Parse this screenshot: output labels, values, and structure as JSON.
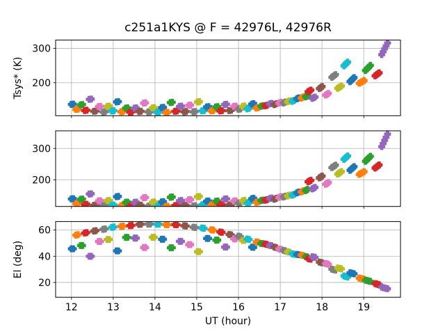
{
  "chart_data": {
    "type": "scatter",
    "title": "c251a1KYS @ F = 42976L, 42976R",
    "xlabel": "UT (hour)",
    "marker": "filled-plus",
    "grid": true,
    "xlim": [
      11.62,
      19.88
    ],
    "x_ticks": [
      12,
      13,
      14,
      15,
      16,
      17,
      18,
      19
    ],
    "color_cycle": [
      "#1f77b4",
      "#ff7f0e",
      "#2ca02c",
      "#d62728",
      "#9467bd",
      "#8c564b",
      "#e377c2",
      "#7f7f7f",
      "#bcbd22",
      "#17becf"
    ],
    "grid_color": "#b0b0b0",
    "frame_color": "#000000",
    "panels": [
      {
        "ylabel": "Tsys* (K)",
        "ylim": [
          104,
          324
        ],
        "yticks": [
          200,
          300
        ],
        "value_key": "tsys_left"
      },
      {
        "ylabel": "",
        "ylim": [
          115,
          356
        ],
        "yticks": [
          200,
          300
        ],
        "value_key": "tsys_right"
      },
      {
        "ylabel": "El (deg)",
        "ylim": [
          8.7,
          66.5
        ],
        "yticks": [
          20,
          40,
          60
        ],
        "value_key": "el"
      }
    ],
    "scan_fields": [
      "ut_hour",
      "color_index",
      "el_deg",
      "tsys_left_K",
      "tsys_right_K",
      "scan_span_hr",
      "el_drift",
      "tsys_left_drift",
      "tsys_right_drift"
    ],
    "scans": [
      [
        12.02,
        0,
        46.0,
        139,
        141,
        0.05,
        0,
        1,
        1
      ],
      [
        12.13,
        1,
        56.0,
        121,
        122,
        0.055,
        0.4,
        1,
        1
      ],
      [
        12.24,
        2,
        48.0,
        135,
        137,
        0.05,
        0,
        1,
        1
      ],
      [
        12.34,
        3,
        57.8,
        119,
        121,
        0.055,
        0.4,
        1,
        1
      ],
      [
        12.45,
        4,
        40.0,
        152,
        155,
        0.05,
        0,
        1,
        1
      ],
      [
        12.56,
        5,
        59.5,
        118,
        120,
        0.055,
        0.4,
        1,
        1
      ],
      [
        12.67,
        6,
        51.5,
        132,
        134,
        0.05,
        0,
        1,
        1
      ],
      [
        12.78,
        7,
        61.0,
        117,
        119,
        0.055,
        0.35,
        1,
        1
      ],
      [
        12.88,
        8,
        52.5,
        130,
        132,
        0.05,
        0,
        1,
        1
      ],
      [
        12.99,
        9,
        62.0,
        117,
        118,
        0.055,
        0.3,
        1,
        1
      ],
      [
        13.1,
        0,
        44.0,
        144,
        146,
        0.05,
        0,
        1,
        1
      ],
      [
        13.21,
        1,
        62.9,
        116,
        118,
        0.055,
        0.25,
        1,
        1
      ],
      [
        13.32,
        2,
        54.5,
        127,
        129,
        0.05,
        0,
        1,
        1
      ],
      [
        13.42,
        3,
        63.6,
        116,
        117,
        0.055,
        0.2,
        1,
        1
      ],
      [
        13.53,
        4,
        54.2,
        128,
        130,
        0.05,
        0,
        1,
        1
      ],
      [
        13.64,
        5,
        64.1,
        115,
        117,
        0.055,
        0.15,
        1,
        1
      ],
      [
        13.75,
        6,
        46.5,
        140,
        142,
        0.05,
        0,
        1,
        1
      ],
      [
        13.86,
        7,
        64.5,
        115,
        116,
        0.055,
        0.1,
        1,
        1
      ],
      [
        13.96,
        8,
        54.5,
        127,
        129,
        0.05,
        0,
        1,
        1
      ],
      [
        14.07,
        9,
        64.6,
        115,
        116,
        0.055,
        0,
        1,
        1
      ],
      [
        14.18,
        0,
        53.2,
        129,
        131,
        0.05,
        0,
        1,
        1
      ],
      [
        14.28,
        1,
        64.4,
        115,
        117,
        0.055,
        -0.1,
        1,
        1
      ],
      [
        14.39,
        2,
        46.2,
        141,
        143,
        0.05,
        0,
        1,
        1
      ],
      [
        14.5,
        3,
        63.9,
        116,
        117,
        0.055,
        -0.15,
        1,
        1
      ],
      [
        14.61,
        4,
        51.3,
        131,
        133,
        0.05,
        0,
        1,
        1
      ],
      [
        14.72,
        5,
        63.2,
        116,
        118,
        0.055,
        -0.2,
        1,
        1
      ],
      [
        14.83,
        6,
        49.0,
        135,
        137,
        0.05,
        0,
        1,
        1
      ],
      [
        14.94,
        7,
        62.3,
        117,
        118,
        0.055,
        -0.25,
        1,
        1
      ],
      [
        15.04,
        8,
        43.8,
        146,
        148,
        0.05,
        0,
        1,
        1
      ],
      [
        15.15,
        9,
        61.2,
        117,
        119,
        0.055,
        -0.3,
        1,
        1
      ],
      [
        15.26,
        0,
        53.4,
        129,
        131,
        0.05,
        0,
        1,
        1
      ],
      [
        15.37,
        1,
        60.0,
        118,
        120,
        0.055,
        -0.3,
        1,
        1
      ],
      [
        15.48,
        2,
        52.3,
        130,
        132,
        0.05,
        0,
        1,
        1
      ],
      [
        15.58,
        3,
        58.5,
        119,
        121,
        0.055,
        -0.35,
        1,
        1
      ],
      [
        15.69,
        4,
        47.2,
        138,
        140,
        0.05,
        0,
        1,
        1
      ],
      [
        15.8,
        5,
        56.8,
        121,
        122,
        0.055,
        -0.35,
        1,
        1
      ],
      [
        15.91,
        6,
        53.0,
        130,
        131,
        0.05,
        0,
        1,
        1
      ],
      [
        16.02,
        7,
        55.0,
        122,
        124,
        0.055,
        -0.4,
        1,
        1
      ],
      [
        16.12,
        8,
        52.0,
        131,
        133,
        0.05,
        0,
        2,
        2
      ],
      [
        16.23,
        9,
        53.0,
        125,
        126,
        0.055,
        -0.4,
        2,
        2
      ],
      [
        16.34,
        0,
        47.0,
        139,
        141,
        0.05,
        -0.2,
        2,
        2
      ],
      [
        16.45,
        1,
        51.0,
        128,
        130,
        0.055,
        -0.4,
        2,
        2
      ],
      [
        16.56,
        2,
        50.0,
        134,
        136,
        0.05,
        -0.2,
        2,
        2
      ],
      [
        16.66,
        3,
        48.9,
        132,
        134,
        0.055,
        -0.45,
        2,
        2
      ],
      [
        16.77,
        4,
        48.0,
        138,
        140,
        0.05,
        -0.2,
        2,
        2
      ],
      [
        16.88,
        5,
        46.7,
        137,
        139,
        0.055,
        -0.45,
        3,
        3
      ],
      [
        16.99,
        6,
        45.5,
        142,
        145,
        0.05,
        -0.25,
        3,
        3
      ],
      [
        17.1,
        7,
        44.4,
        143,
        147,
        0.055,
        -0.5,
        3,
        3
      ],
      [
        17.2,
        8,
        43.5,
        147,
        151,
        0.05,
        -0.25,
        3,
        3
      ],
      [
        17.31,
        9,
        42.0,
        149,
        154,
        0.055,
        -0.5,
        3,
        3
      ],
      [
        17.42,
        0,
        41.0,
        153,
        158,
        0.05,
        -0.25,
        3,
        3
      ],
      [
        17.53,
        1,
        40.5,
        156,
        162,
        0.055,
        -0.5,
        4,
        4
      ],
      [
        17.63,
        2,
        39.5,
        160,
        167,
        0.05,
        -0.3,
        4,
        4
      ],
      [
        17.7,
        3,
        38.0,
        176,
        196,
        0.07,
        -0.5,
        5,
        5
      ],
      [
        17.8,
        4,
        39.5,
        157,
        174,
        0.07,
        -0.5,
        4,
        5
      ],
      [
        17.97,
        5,
        35.5,
        187,
        210,
        0.07,
        -0.6,
        6,
        6
      ],
      [
        18.12,
        6,
        34.5,
        168,
        190,
        0.07,
        -0.6,
        5,
        6
      ],
      [
        18.28,
        7,
        29.5,
        218,
        241,
        0.09,
        -0.7,
        8,
        8
      ],
      [
        18.42,
        8,
        30.5,
        186,
        221,
        0.09,
        -0.7,
        7,
        8
      ],
      [
        18.57,
        9,
        24.5,
        254,
        270,
        0.09,
        -0.8,
        11,
        11
      ],
      [
        18.72,
        0,
        27.0,
        209,
        236,
        0.1,
        -0.8,
        12,
        12
      ],
      [
        18.95,
        1,
        23.0,
        203,
        222,
        0.12,
        -0.9,
        8,
        9
      ],
      [
        19.1,
        2,
        21.5,
        244,
        268,
        0.12,
        -1.0,
        15,
        16
      ],
      [
        19.32,
        3,
        19.0,
        226,
        244,
        0.1,
        -0.9,
        9,
        10
      ],
      [
        19.5,
        4,
        15.5,
        297,
        324,
        0.14,
        -1.2,
        34,
        40
      ]
    ]
  }
}
